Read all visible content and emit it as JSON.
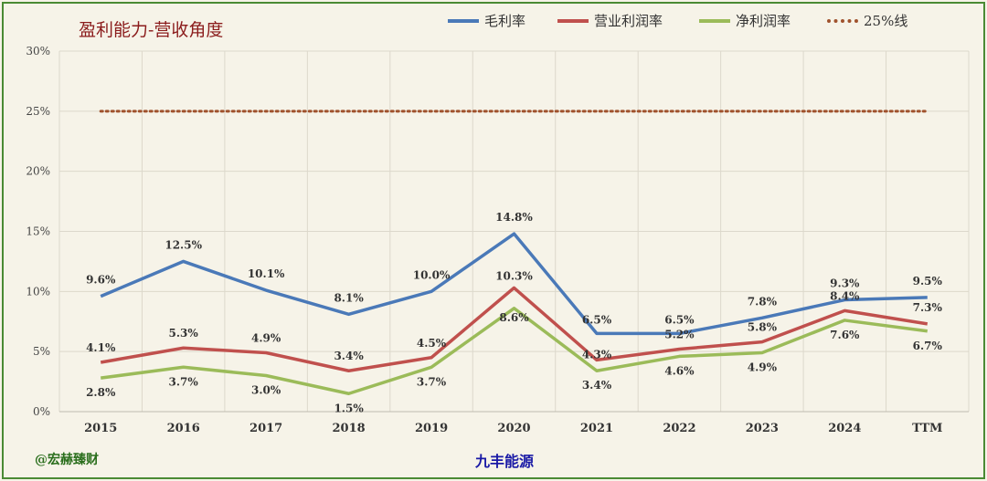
{
  "header": {
    "title": "盈利能力-营收角度"
  },
  "footer": {
    "watermark": "@宏赫臻财",
    "company": "九丰能源"
  },
  "legend": [
    {
      "name": "毛利率",
      "color": "#4a79b8",
      "style": "solid"
    },
    {
      "name": "营业利润率",
      "color": "#c0504d",
      "style": "solid"
    },
    {
      "name": "净利润率",
      "color": "#9bbb59",
      "style": "solid"
    },
    {
      "name": "25%线",
      "color": "#a0522d",
      "style": "dotted"
    }
  ],
  "chart_data": {
    "type": "line",
    "title": "盈利能力-营收角度",
    "categories": [
      "2015",
      "2016",
      "2017",
      "2018",
      "2019",
      "2020",
      "2021",
      "2022",
      "2023",
      "2024",
      "TTM"
    ],
    "y_ticks": [
      "0%",
      "5%",
      "10%",
      "15%",
      "20%",
      "25%",
      "30%"
    ],
    "ylim": [
      0,
      30
    ],
    "grid": true,
    "legend_position": "top",
    "series": [
      {
        "name": "毛利率",
        "color": "#4a79b8",
        "values": [
          9.6,
          12.5,
          10.1,
          8.1,
          10.0,
          14.8,
          6.5,
          6.5,
          7.8,
          9.3,
          9.5
        ],
        "labels": [
          "9.6%",
          "12.5%",
          "10.1%",
          "8.1%",
          "10.0%",
          "14.8%",
          "6.5%",
          "6.5%",
          "7.8%",
          "9.3%",
          "9.5%"
        ]
      },
      {
        "name": "营业利润率",
        "color": "#c0504d",
        "values": [
          4.1,
          5.3,
          4.9,
          3.4,
          4.5,
          10.3,
          4.3,
          5.2,
          5.8,
          8.4,
          7.3
        ],
        "labels": [
          "4.1%",
          "5.3%",
          "4.9%",
          "3.4%",
          "4.5%",
          "10.3%",
          "4.3%",
          "5.2%",
          "5.8%",
          "8.4%",
          "7.3%"
        ]
      },
      {
        "name": "净利润率",
        "color": "#9bbb59",
        "values": [
          2.8,
          3.7,
          3.0,
          1.5,
          3.7,
          8.6,
          3.4,
          4.6,
          4.9,
          7.6,
          6.7
        ],
        "labels": [
          "2.8%",
          "3.7%",
          "3.0%",
          "1.5%",
          "3.7%",
          "8.6%",
          "3.4%",
          "4.6%",
          "4.9%",
          "7.6%",
          "6.7%"
        ]
      },
      {
        "name": "25%线",
        "color": "#a0522d",
        "style": "dotted",
        "values": [
          25,
          25,
          25,
          25,
          25,
          25,
          25,
          25,
          25,
          25,
          25
        ]
      }
    ]
  }
}
